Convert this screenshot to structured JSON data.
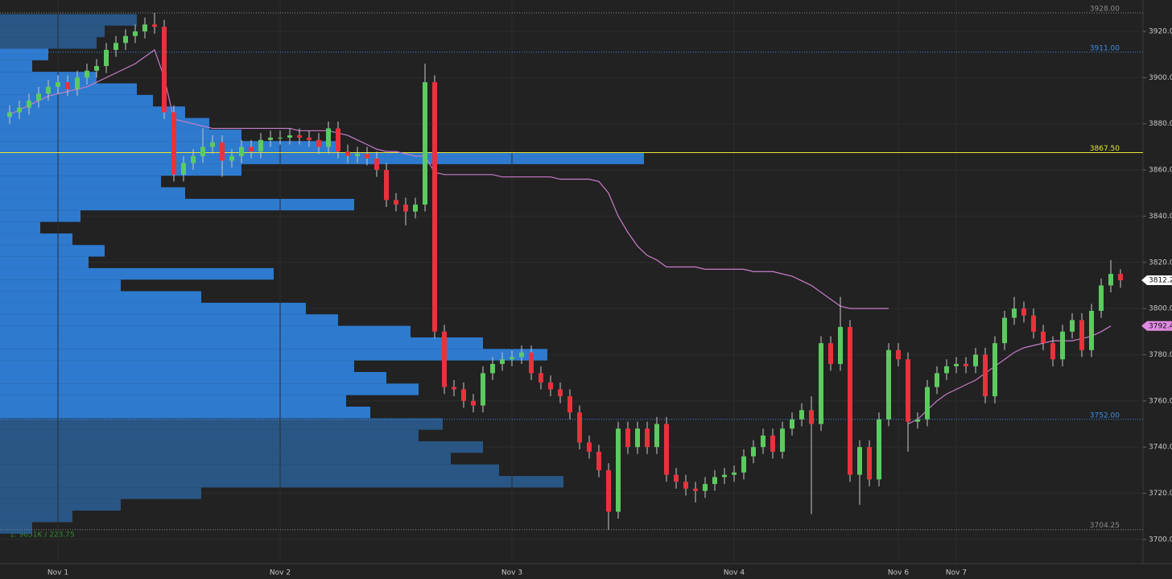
{
  "chart_data": {
    "type": "candlestick",
    "categories": [
      null,
      null,
      null,
      null,
      null,
      "Nov 1",
      null,
      null,
      null,
      null,
      null,
      null,
      null,
      null,
      null,
      null,
      null,
      null,
      null,
      null,
      null,
      null,
      null,
      null,
      null,
      null,
      null,
      null,
      "Nov 2",
      null,
      null,
      null,
      null,
      null,
      null,
      null,
      null,
      null,
      null,
      null,
      null,
      null,
      null,
      null,
      null,
      null,
      null,
      null,
      null,
      null,
      null,
      null,
      "Nov 3",
      null,
      null,
      null,
      null,
      null,
      null,
      null,
      null,
      null,
      null,
      null,
      null,
      null,
      null,
      null,
      null,
      null,
      null,
      null,
      null,
      null,
      null,
      "Nov 4",
      null,
      null,
      null,
      null,
      null,
      null,
      null,
      null,
      null,
      null,
      null,
      null,
      null,
      null,
      null,
      null,
      "Nov 6",
      null,
      null,
      null,
      null,
      null,
      "Nov 7",
      null,
      null,
      null,
      null,
      null,
      null,
      null,
      null,
      null,
      null,
      null,
      null,
      null,
      null,
      null,
      null,
      null
    ],
    "open": [
      3883,
      3885,
      3887,
      3890,
      3893,
      3896,
      3898,
      3895,
      3900,
      3903,
      3905,
      3912,
      3915,
      3918,
      3920,
      3923,
      3922,
      3885,
      3858,
      3863,
      3866,
      3870,
      3872,
      3864,
      3866,
      3870,
      3868,
      3873,
      3874,
      3874,
      3875,
      3874,
      3873,
      3870,
      3878,
      3868,
      3866,
      3867,
      3865,
      3860,
      3847,
      3845,
      3842,
      3845,
      3898,
      3790,
      3766,
      3765,
      3760,
      3758,
      3772,
      3776,
      3778,
      3779,
      3781,
      3772,
      3768,
      3765,
      3762,
      3755,
      3742,
      3738,
      3730,
      3712,
      3748,
      3740,
      3748,
      3740,
      3750,
      3728,
      3725,
      3722,
      3721,
      3724,
      3727,
      3728,
      3729,
      3736,
      3740,
      3745,
      3738,
      3748,
      3752,
      3756,
      3750,
      3785,
      3776,
      3792,
      3728,
      3740,
      3726,
      3752,
      3782,
      3778,
      3751,
      3752,
      3766,
      3772,
      3775,
      3776,
      3775,
      3780,
      3762,
      3785,
      3796,
      3800,
      3797,
      3790,
      3785,
      3778,
      3790,
      3795,
      3782,
      3799,
      3810,
      3815
    ],
    "high": [
      3888,
      3890,
      3893,
      3896,
      3899,
      3901,
      3901,
      3903,
      3906,
      3908,
      3915,
      3918,
      3921,
      3923,
      3926,
      3928,
      3925,
      3888,
      3866,
      3869,
      3878,
      3875,
      3875,
      3869,
      3873,
      3873,
      3876,
      3877,
      3877,
      3878,
      3878,
      3877,
      3876,
      3881,
      3881,
      3871,
      3870,
      3870,
      3868,
      3863,
      3850,
      3848,
      3848,
      3906,
      3901,
      3793,
      3769,
      3768,
      3763,
      3775,
      3779,
      3781,
      3782,
      3784,
      3784,
      3775,
      3771,
      3768,
      3765,
      3758,
      3745,
      3741,
      3733,
      3751,
      3751,
      3751,
      3751,
      3753,
      3753,
      3731,
      3728,
      3725,
      3727,
      3730,
      3731,
      3732,
      3739,
      3743,
      3748,
      3748,
      3751,
      3755,
      3759,
      3762,
      3788,
      3788,
      3805,
      3795,
      3743,
      3743,
      3755,
      3785,
      3785,
      3781,
      3755,
      3769,
      3775,
      3778,
      3779,
      3779,
      3783,
      3783,
      3788,
      3799,
      3805,
      3803,
      3800,
      3793,
      3788,
      3793,
      3798,
      3798,
      3802,
      3813,
      3821,
      3817
    ],
    "low": [
      3880,
      3882,
      3884,
      3887,
      3890,
      3893,
      3892,
      3892,
      3897,
      3900,
      3902,
      3909,
      3912,
      3915,
      3917,
      3919,
      3882,
      3855,
      3855,
      3860,
      3863,
      3867,
      3857,
      3861,
      3863,
      3865,
      3865,
      3870,
      3871,
      3871,
      3871,
      3870,
      3867,
      3867,
      3865,
      3863,
      3863,
      3862,
      3857,
      3844,
      3842,
      3836,
      3839,
      3842,
      3787,
      3763,
      3762,
      3757,
      3755,
      3755,
      3769,
      3773,
      3775,
      3776,
      3769,
      3765,
      3762,
      3759,
      3752,
      3739,
      3735,
      3727,
      3704.25,
      3709,
      3737,
      3737,
      3737,
      3737,
      3725,
      3722,
      3719,
      3716,
      3718,
      3721,
      3724,
      3725,
      3726,
      3733,
      3737,
      3735,
      3735,
      3745,
      3749,
      3711,
      3747,
      3773,
      3773,
      3725,
      3715,
      3723,
      3723,
      3749,
      3775,
      3738,
      3748,
      3749,
      3763,
      3769,
      3772,
      3772,
      3772,
      3759,
      3759,
      3782,
      3793,
      3794,
      3787,
      3782,
      3775,
      3775,
      3787,
      3779,
      3779,
      3796,
      3807,
      3809
    ],
    "close": [
      3885,
      3887,
      3890,
      3893,
      3896,
      3898,
      3895,
      3900,
      3903,
      3905,
      3912,
      3915,
      3918,
      3920,
      3923,
      3922,
      3885,
      3858,
      3863,
      3866,
      3870,
      3872,
      3864,
      3866,
      3870,
      3868,
      3873,
      3874,
      3874,
      3875,
      3874,
      3873,
      3870,
      3878,
      3868,
      3866,
      3867,
      3865,
      3860,
      3847,
      3845,
      3842,
      3845,
      3898,
      3790,
      3766,
      3765,
      3760,
      3758,
      3772,
      3776,
      3778,
      3779,
      3781,
      3772,
      3768,
      3765,
      3762,
      3755,
      3742,
      3738,
      3730,
      3712,
      3748,
      3740,
      3748,
      3740,
      3750,
      3728,
      3725,
      3722,
      3721,
      3724,
      3727,
      3728,
      3729,
      3736,
      3740,
      3745,
      3738,
      3748,
      3752,
      3756,
      3750,
      3785,
      3776,
      3792,
      3728,
      3740,
      3726,
      3752,
      3782,
      3778,
      3751,
      3752,
      3766,
      3772,
      3775,
      3776,
      3775,
      3780,
      3762,
      3785,
      3796,
      3800,
      3797,
      3790,
      3785,
      3778,
      3790,
      3795,
      3782,
      3799,
      3810,
      3815,
      3812.25
    ],
    "up_color": "#5ccb5f",
    "down_color": "#e8323c",
    "wick_color": "#c8c8c8",
    "vwap": {
      "color": "#c77dc9",
      "values": [
        3884,
        3886,
        3888,
        3890,
        3892,
        3893,
        3894,
        3895,
        3896,
        3898,
        3900,
        3902,
        3904,
        3906,
        3909,
        3912,
        3900,
        3882,
        3881,
        3880,
        3879,
        3878,
        3878,
        3878,
        3878,
        3878,
        3878,
        3878,
        3878,
        3878,
        3877,
        3877,
        3877,
        3877,
        3876,
        3875,
        3873,
        3871,
        3869,
        3868,
        3868,
        3867,
        3866,
        3866,
        3859,
        3858,
        3858,
        3858,
        3858,
        3858,
        3858,
        3857,
        3857,
        3857,
        3857,
        3857,
        3857,
        3856,
        3856,
        3856,
        3856,
        3855,
        3850,
        3840,
        3833,
        3827,
        3823,
        3821,
        3818,
        3818,
        3818,
        3818,
        3817,
        3817,
        3817,
        3817,
        3817,
        3816,
        3816,
        3816,
        3815,
        3814,
        3812,
        3810,
        3807,
        3804,
        3801,
        3800,
        3800,
        3800,
        3800,
        3800,
        null,
        3750,
        3752,
        3756,
        3760,
        3763,
        3765,
        3767,
        3769,
        3772,
        3775,
        3778,
        3781,
        3783,
        3784,
        3785,
        3786,
        3786,
        3786,
        3787,
        3788,
        3790,
        3792.44,
        null
      ]
    },
    "volume_profile": {
      "prices": [
        3925,
        3920,
        3915,
        3910,
        3905,
        3900,
        3895,
        3890,
        3885,
        3880,
        3875,
        3870,
        3865,
        3860,
        3855,
        3850,
        3845,
        3840,
        3835,
        3830,
        3825,
        3820,
        3815,
        3810,
        3805,
        3800,
        3795,
        3790,
        3785,
        3780,
        3775,
        3770,
        3765,
        3760,
        3755,
        3750,
        3745,
        3740,
        3735,
        3730,
        3725,
        3720,
        3715,
        3710,
        3705
      ],
      "values": [
        170,
        130,
        120,
        60,
        40,
        120,
        170,
        190,
        230,
        260,
        300,
        420,
        800,
        300,
        200,
        230,
        440,
        100,
        50,
        90,
        130,
        110,
        340,
        150,
        250,
        380,
        420,
        510,
        600,
        680,
        440,
        480,
        520,
        430,
        460,
        550,
        520,
        600,
        560,
        620,
        700,
        250,
        150,
        90,
        40
      ],
      "color": "#2f80d8",
      "outside_color": "#2a5a8a"
    },
    "levels": [
      {
        "value": 3928,
        "label": "3928.00",
        "color": "#8a8a8a"
      },
      {
        "value": 3911,
        "label": "3911.00",
        "color": "#3d8ee8"
      },
      {
        "value": 3867.5,
        "label": "3867.50",
        "color": "#e6e632"
      },
      {
        "value": 3752,
        "label": "3752.00",
        "color": "#3d8ee8"
      },
      {
        "value": 3704.25,
        "label": "3704.25",
        "color": "#8a8a8a"
      }
    ],
    "price_tags": [
      {
        "value": 3812.25,
        "label": "3812.25",
        "color": "#ffffff"
      },
      {
        "value": 3792.44,
        "label": "3792.44",
        "color": "#e08ae2"
      }
    ],
    "annotation": "1: 9651K / 223.75",
    "ylim": [
      3689.5,
      3933.6
    ],
    "yticks": [
      {
        "value": 3700,
        "label": "3700.00"
      },
      {
        "value": 3720,
        "label": "3720.00"
      },
      {
        "value": 3740,
        "label": "3740.00"
      },
      {
        "value": 3760,
        "label": "3760.00"
      },
      {
        "value": 3780,
        "label": "3780.00"
      },
      {
        "value": 3800,
        "label": "3800.00"
      },
      {
        "value": 3820,
        "label": "3820.00"
      },
      {
        "value": 3840,
        "label": "3840.00"
      },
      {
        "value": 3860,
        "label": "3860.00"
      },
      {
        "value": 3880,
        "label": "3880.00"
      },
      {
        "value": 3900,
        "label": "3900.00"
      },
      {
        "value": 3920,
        "label": "3920.00"
      }
    ],
    "grid": true
  }
}
